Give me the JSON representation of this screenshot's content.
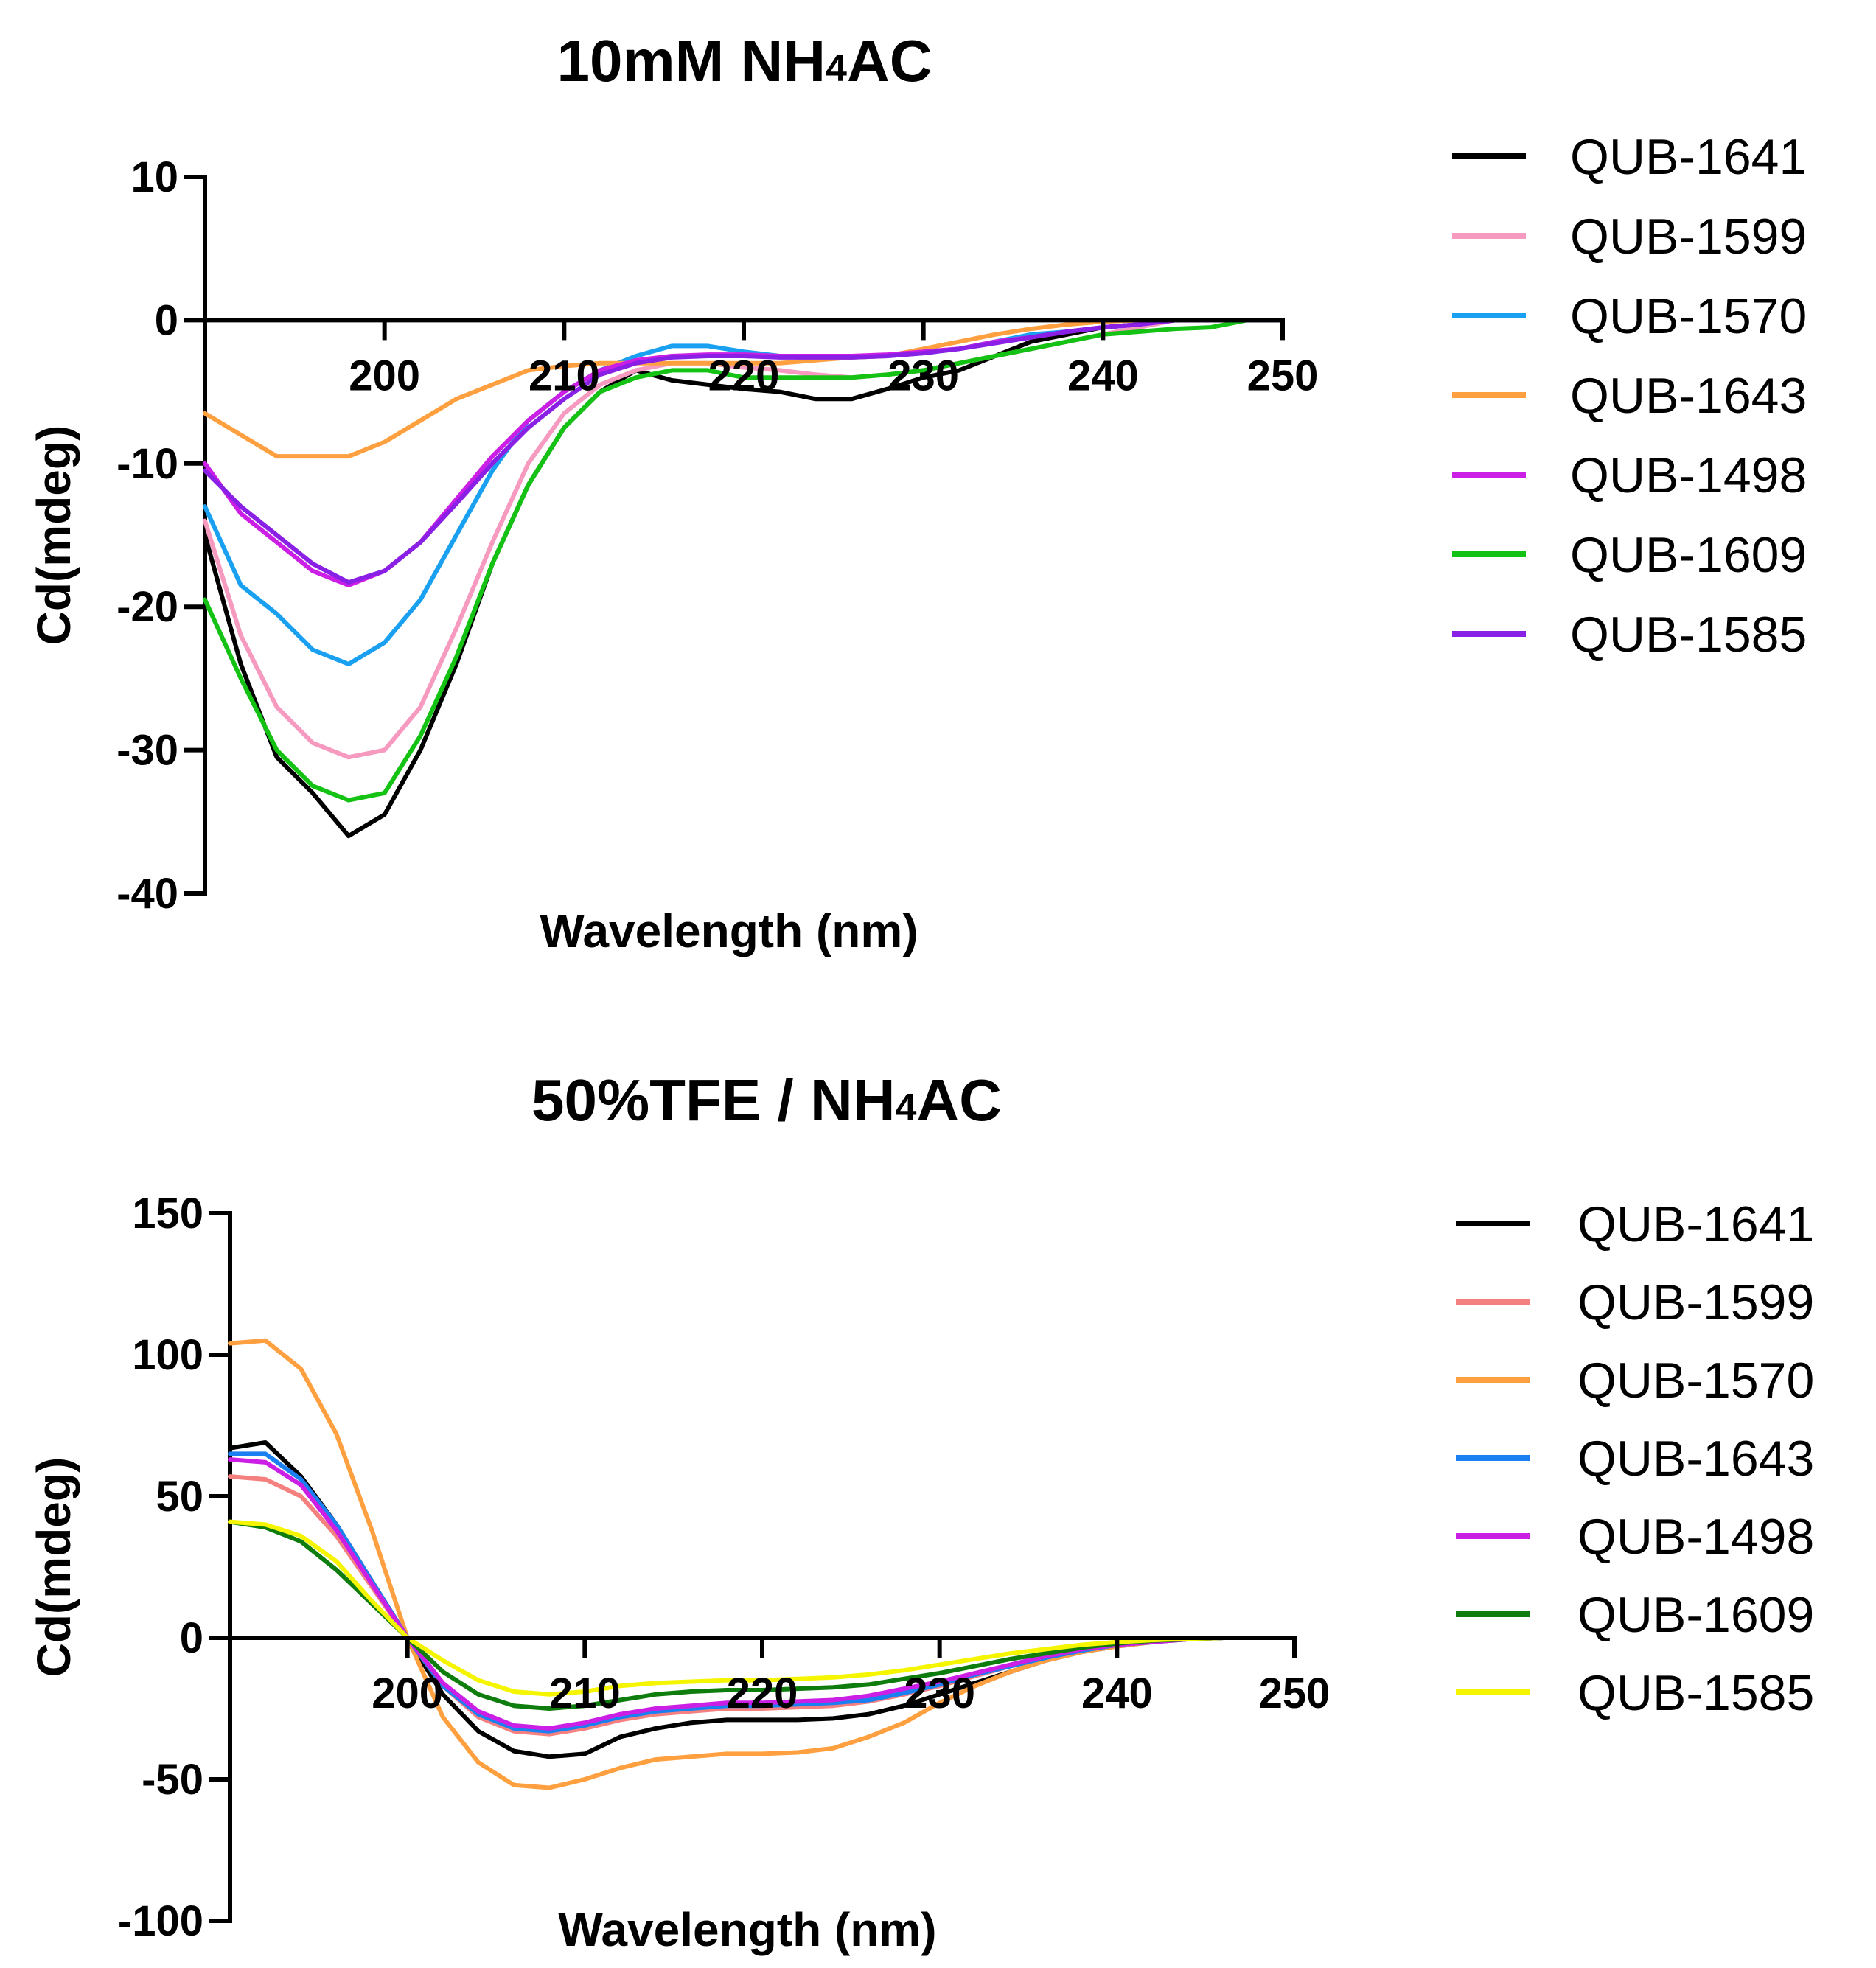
{
  "chart_data": [
    {
      "type": "line",
      "title": "10mM NH4AC",
      "title_parts": [
        "10mM NH",
        "4",
        "AC"
      ],
      "xlabel": "Wavelength (nm)",
      "ylabel": "Cd(mdeg)",
      "xlim": [
        190,
        250
      ],
      "ylim": [
        -40,
        10
      ],
      "xticks": [
        200,
        210,
        220,
        230,
        240,
        250
      ],
      "yticks": [
        10,
        0,
        -10,
        -20,
        -30,
        -40
      ],
      "legend_position": "right",
      "x": [
        190,
        192,
        194,
        196,
        198,
        200,
        202,
        204,
        206,
        208,
        210,
        212,
        214,
        216,
        218,
        220,
        222,
        224,
        226,
        228,
        230,
        232,
        234,
        236,
        238,
        240,
        242,
        244,
        246,
        248,
        250
      ],
      "series": [
        {
          "name": "QUB-1641",
          "color": "#000000",
          "values": [
            -15,
            -24,
            -30.5,
            -33,
            -36,
            -34.5,
            -30,
            -24,
            -17,
            -11.5,
            -7.5,
            -5,
            -3.5,
            -4.2,
            -4.5,
            -4.8,
            -5,
            -5.5,
            -5.5,
            -4.8,
            -4,
            -3.5,
            -2.5,
            -1.5,
            -1,
            -0.5,
            -0.3,
            0,
            0,
            0,
            0
          ]
        },
        {
          "name": "QUB-1599",
          "color": "#f79ac0",
          "values": [
            -14,
            -22,
            -27,
            -29.5,
            -30.5,
            -30,
            -27,
            -21.5,
            -15.5,
            -10,
            -6.5,
            -4.5,
            -3.5,
            -3,
            -3,
            -3.3,
            -3.5,
            -3.8,
            -4,
            -3.8,
            -3.5,
            -3,
            -2.5,
            -2,
            -1.5,
            -1,
            -0.5,
            0,
            0,
            0,
            0
          ]
        },
        {
          "name": "QUB-1570",
          "color": "#1aa0f0",
          "values": [
            -13,
            -18.5,
            -20.5,
            -23,
            -24,
            -22.5,
            -19.5,
            -15,
            -10.5,
            -7,
            -5,
            -3.5,
            -2.5,
            -1.8,
            -1.8,
            -2.2,
            -2.5,
            -2.5,
            -2.6,
            -2.5,
            -2.3,
            -2,
            -1.5,
            -1,
            -0.8,
            -0.5,
            -0.3,
            0,
            0,
            0,
            0
          ]
        },
        {
          "name": "QUB-1643",
          "color": "#ffa040",
          "values": [
            -6.5,
            -8,
            -9.5,
            -9.5,
            -9.5,
            -8.5,
            -7,
            -5.5,
            -4.5,
            -3.5,
            -3.2,
            -3,
            -3,
            -3,
            -3,
            -3,
            -3,
            -2.8,
            -2.6,
            -2.5,
            -2,
            -1.5,
            -1,
            -0.6,
            -0.3,
            -0.1,
            0,
            0,
            0,
            0,
            0
          ]
        },
        {
          "name": "QUB-1498",
          "color": "#cc1fe6",
          "values": [
            -10,
            -13.5,
            -15.5,
            -17.5,
            -18.5,
            -17.5,
            -15.5,
            -12.5,
            -9.5,
            -7,
            -5,
            -3.5,
            -2.8,
            -2.5,
            -2.4,
            -2.4,
            -2.5,
            -2.5,
            -2.5,
            -2.4,
            -2.2,
            -2,
            -1.5,
            -1.2,
            -0.8,
            -0.5,
            -0.3,
            0,
            0,
            0,
            0
          ]
        },
        {
          "name": "QUB-1609",
          "color": "#14c214",
          "values": [
            -19.5,
            -25,
            -30,
            -32.5,
            -33.5,
            -33,
            -29,
            -23.5,
            -17,
            -11.5,
            -7.5,
            -5,
            -4,
            -3.5,
            -3.5,
            -4,
            -4,
            -4,
            -4,
            -3.8,
            -3.5,
            -3,
            -2.5,
            -2,
            -1.5,
            -1,
            -0.8,
            -0.6,
            -0.5,
            0,
            0
          ]
        },
        {
          "name": "QUB-1585",
          "color": "#8a1fe6",
          "values": [
            -10.5,
            -13,
            -15,
            -17,
            -18.3,
            -17.5,
            -15.5,
            -12.8,
            -10,
            -7.5,
            -5.5,
            -3.8,
            -3,
            -2.6,
            -2.5,
            -2.5,
            -2.6,
            -2.6,
            -2.6,
            -2.5,
            -2.3,
            -2,
            -1.6,
            -1.2,
            -0.8,
            -0.5,
            -0.3,
            0,
            0,
            0,
            0
          ]
        }
      ]
    },
    {
      "type": "line",
      "title": "50%TFE / NH4AC",
      "title_parts": [
        "50%TFE / NH",
        "4",
        "AC"
      ],
      "xlabel": "Wavelength (nm)",
      "ylabel": "Cd(mdeg)",
      "xlim": [
        190,
        250
      ],
      "ylim": [
        -100,
        150
      ],
      "xticks": [
        200,
        210,
        220,
        230,
        240,
        250
      ],
      "yticks": [
        150,
        100,
        50,
        0,
        -50,
        -100
      ],
      "legend_position": "right",
      "x": [
        190,
        192,
        194,
        196,
        198,
        200,
        202,
        204,
        206,
        208,
        210,
        212,
        214,
        216,
        218,
        220,
        222,
        224,
        226,
        228,
        230,
        232,
        234,
        236,
        238,
        240,
        242,
        244,
        246,
        248,
        250
      ],
      "series": [
        {
          "name": "QUB-1641",
          "color": "#000000",
          "values": [
            67,
            69,
            57,
            40,
            20,
            0,
            -20,
            -33,
            -40,
            -42,
            -41,
            -35,
            -32,
            -30,
            -29,
            -29,
            -29,
            -28.5,
            -27,
            -24,
            -20,
            -16,
            -12,
            -8,
            -5,
            -3,
            -1.5,
            -0.5,
            0,
            0,
            0
          ]
        },
        {
          "name": "QUB-1599",
          "color": "#f58080",
          "values": [
            57,
            56,
            50,
            36,
            18,
            0,
            -17,
            -28,
            -33,
            -34,
            -32,
            -29,
            -27,
            -26,
            -25,
            -25,
            -24.5,
            -24,
            -22.5,
            -20,
            -17,
            -13.5,
            -10,
            -7,
            -4.5,
            -2.5,
            -1.5,
            -0.5,
            0,
            0,
            0
          ]
        },
        {
          "name": "QUB-1570",
          "color": "#ffa040",
          "values": [
            104,
            105,
            95,
            72,
            38,
            0,
            -28,
            -44,
            -52,
            -53,
            -50,
            -46,
            -43,
            -42,
            -41,
            -41,
            -40.5,
            -39,
            -35,
            -30,
            -23,
            -17,
            -12,
            -8,
            -5,
            -3,
            -1.5,
            -0.5,
            0,
            0,
            0
          ]
        },
        {
          "name": "QUB-1643",
          "color": "#1a7ff0",
          "values": [
            65,
            65,
            56,
            40,
            20,
            0,
            -17,
            -27,
            -32,
            -33,
            -31,
            -28,
            -26,
            -25,
            -24,
            -24,
            -23.5,
            -23,
            -22,
            -19.5,
            -16.5,
            -13,
            -10,
            -7,
            -4.5,
            -2.5,
            -1.5,
            -0.5,
            0,
            0,
            0
          ]
        },
        {
          "name": "QUB-1498",
          "color": "#cc1fe6",
          "values": [
            63,
            62,
            54,
            38,
            19,
            0,
            -16,
            -26,
            -31,
            -32,
            -30,
            -27,
            -25,
            -24,
            -23,
            -23,
            -22.5,
            -22,
            -20.5,
            -18,
            -15.5,
            -12.5,
            -9.5,
            -6.5,
            -4,
            -2.5,
            -1.5,
            -0.5,
            0,
            0,
            0
          ]
        },
        {
          "name": "QUB-1609",
          "color": "#0e7d0e",
          "values": [
            41,
            39,
            34,
            24,
            12,
            0,
            -12,
            -20,
            -24,
            -25,
            -24,
            -22,
            -20,
            -19,
            -18.5,
            -18.5,
            -18,
            -17.5,
            -16.5,
            -14.5,
            -12.5,
            -10,
            -7.5,
            -5.5,
            -3.5,
            -2,
            -1,
            -0.5,
            0,
            0,
            0
          ]
        },
        {
          "name": "QUB-1585",
          "color": "#f5f500",
          "values": [
            41,
            40,
            36,
            27,
            13,
            0,
            -8,
            -15,
            -19,
            -20,
            -19,
            -17,
            -16,
            -15.5,
            -15,
            -15,
            -14.5,
            -14,
            -13,
            -11.5,
            -9.5,
            -7.5,
            -5.5,
            -4,
            -2.5,
            -1.5,
            -0.8,
            -0.3,
            0,
            0,
            0
          ]
        }
      ]
    }
  ]
}
